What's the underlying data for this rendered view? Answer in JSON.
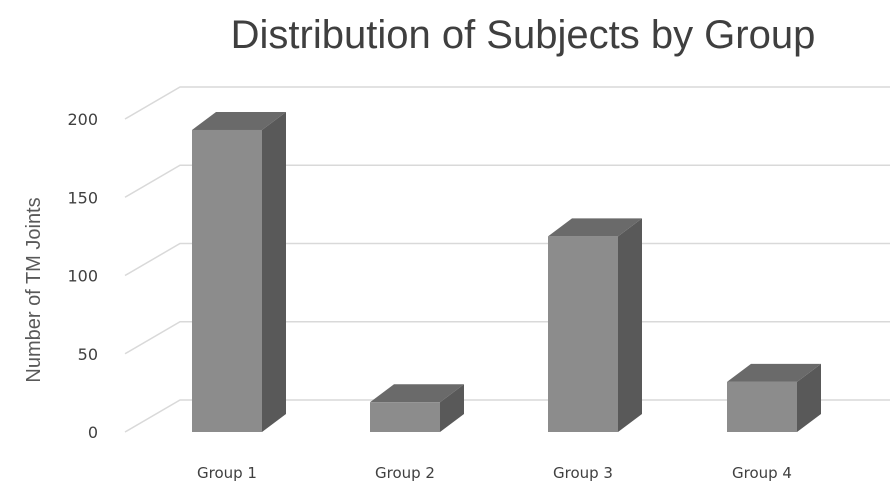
{
  "chart_data": {
    "type": "bar",
    "style": "3d-column",
    "title": "Distribution of Subjects by Group",
    "ylabel": "Number of TM Joints",
    "xlabel": "",
    "categories": [
      "Group 1",
      "Group 2",
      "Group 3",
      "Group 4"
    ],
    "values": [
      193,
      19,
      125,
      32
    ],
    "ylim": [
      0,
      200
    ],
    "yticks": [
      0,
      50,
      100,
      150,
      200
    ],
    "grid": true,
    "legend": "none",
    "colors": {
      "front": "#8c8c8c",
      "top": "#6a6a6a",
      "side": "#595959",
      "grid": "#d9d9d9"
    }
  }
}
